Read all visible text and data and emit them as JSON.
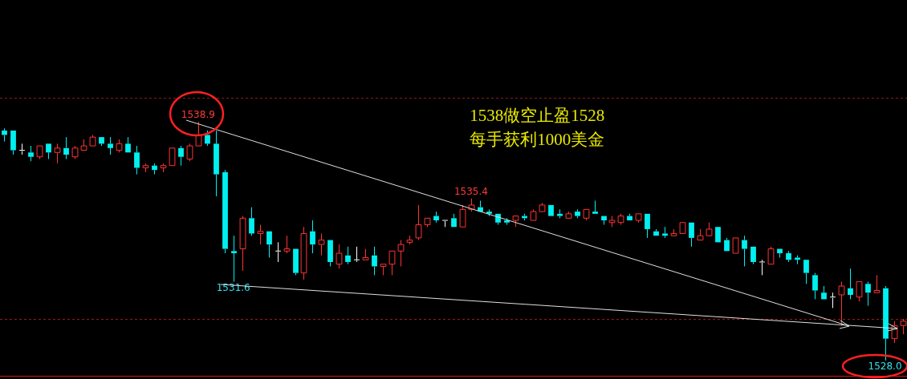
{
  "chart_data": {
    "type": "candlestick",
    "categories": [
      null,
      null,
      null,
      null,
      null,
      null,
      null,
      null,
      null,
      null,
      null,
      null,
      null,
      null,
      null,
      null,
      null,
      null,
      null,
      null,
      null,
      null,
      null,
      null,
      null,
      null,
      null,
      null,
      null,
      null,
      null,
      null,
      null,
      null,
      null,
      null,
      null,
      null,
      null,
      null,
      null,
      null,
      null,
      null,
      null,
      null,
      null,
      null,
      null,
      null,
      null,
      null,
      null,
      null,
      null,
      null,
      null,
      null,
      null,
      null,
      null,
      null,
      null,
      null,
      null,
      null,
      null,
      null,
      null,
      null,
      null,
      null,
      null,
      null,
      null,
      null,
      null,
      null,
      null,
      null,
      null,
      null,
      null,
      null,
      null,
      null,
      null,
      null,
      null,
      null,
      null,
      null,
      null,
      null,
      null,
      null,
      null,
      null,
      null,
      null,
      null,
      null,
      null
    ],
    "ohlc": [
      [
        1538.5,
        1538.6,
        1538.0,
        1538.3
      ],
      [
        1538.5,
        1538.5,
        1537.4,
        1537.6
      ],
      [
        1537.6,
        1537.9,
        1537.4,
        1537.6
      ],
      [
        1537.5,
        1537.8,
        1537.1,
        1537.3
      ],
      [
        1537.3,
        1537.8,
        1537.2,
        1537.8
      ],
      [
        1537.9,
        1537.9,
        1537.2,
        1537.5
      ],
      [
        1537.5,
        1537.9,
        1537.0,
        1537.7
      ],
      [
        1537.7,
        1538.2,
        1537.2,
        1537.4
      ],
      [
        1537.3,
        1537.8,
        1537.2,
        1537.7
      ],
      [
        1537.6,
        1538.1,
        1537.6,
        1537.8
      ],
      [
        1537.8,
        1538.3,
        1537.8,
        1538.2
      ],
      [
        1538.2,
        1538.2,
        1537.8,
        1537.9
      ],
      [
        1537.9,
        1538.2,
        1537.4,
        1537.7
      ],
      [
        1537.6,
        1538.1,
        1537.5,
        1537.9
      ],
      [
        1537.9,
        1538.2,
        1537.5,
        1537.5
      ],
      [
        1537.5,
        1537.8,
        1536.5,
        1536.8
      ],
      [
        1536.8,
        1537.0,
        1536.6,
        1536.9
      ],
      [
        1536.9,
        1537.0,
        1536.5,
        1536.7
      ],
      [
        1536.8,
        1537.0,
        1536.6,
        1536.9
      ],
      [
        1536.9,
        1537.7,
        1536.9,
        1537.7
      ],
      [
        1537.7,
        1537.8,
        1536.9,
        1537.3
      ],
      [
        1537.2,
        1537.9,
        1537.1,
        1537.8
      ],
      [
        1537.8,
        1538.9,
        1537.8,
        1538.3
      ],
      [
        1538.3,
        1538.5,
        1537.8,
        1537.9
      ],
      [
        1537.9,
        1538.5,
        1535.5,
        1536.5
      ],
      [
        1536.6,
        1536.7,
        1532.9,
        1533.1
      ],
      [
        1533.0,
        1533.7,
        1531.6,
        1532.9
      ],
      [
        1533.1,
        1534.6,
        1532.1,
        1534.5
      ],
      [
        1534.5,
        1535.0,
        1533.7,
        1533.8
      ],
      [
        1533.8,
        1534.2,
        1533.3,
        1533.9
      ],
      [
        1533.9,
        1533.9,
        1532.7,
        1533.3
      ],
      [
        1533.0,
        1533.4,
        1532.5,
        1533.0
      ],
      [
        1533.0,
        1533.7,
        1532.9,
        1533.1
      ],
      [
        1533.1,
        1533.1,
        1531.9,
        1532.0
      ],
      [
        1532.0,
        1534.1,
        1531.7,
        1533.8
      ],
      [
        1533.9,
        1534.4,
        1532.9,
        1533.3
      ],
      [
        1533.3,
        1533.8,
        1532.8,
        1533.5
      ],
      [
        1533.5,
        1533.5,
        1532.3,
        1532.5
      ],
      [
        1532.4,
        1533.3,
        1532.2,
        1532.9
      ],
      [
        1532.8,
        1533.2,
        1532.4,
        1532.5
      ],
      [
        1532.6,
        1533.2,
        1532.5,
        1532.6
      ],
      [
        1532.6,
        1533.1,
        1532.6,
        1532.7
      ],
      [
        1532.8,
        1533.2,
        1531.9,
        1532.3
      ],
      [
        1532.3,
        1532.4,
        1531.9,
        1532.4
      ],
      [
        1532.4,
        1533.0,
        1531.9,
        1533.0
      ],
      [
        1533.0,
        1533.5,
        1532.3,
        1533.3
      ],
      [
        1533.4,
        1533.7,
        1533.3,
        1533.5
      ],
      [
        1533.6,
        1535.1,
        1533.5,
        1534.2
      ],
      [
        1534.2,
        1534.5,
        1534.1,
        1534.5
      ],
      [
        1534.6,
        1534.8,
        1534.3,
        1534.4
      ],
      [
        1534.4,
        1534.4,
        1534.1,
        1534.4
      ],
      [
        1534.5,
        1534.7,
        1534.1,
        1534.1
      ],
      [
        1534.1,
        1535.1,
        1534.1,
        1534.9
      ],
      [
        1534.9,
        1535.4,
        1534.8,
        1535.1
      ],
      [
        1535.0,
        1535.3,
        1534.8,
        1534.8
      ],
      [
        1534.8,
        1534.9,
        1534.6,
        1534.7
      ],
      [
        1534.7,
        1534.7,
        1534.2,
        1534.3
      ],
      [
        1534.4,
        1534.5,
        1534.2,
        1534.3
      ],
      [
        1534.4,
        1534.6,
        1534.1,
        1534.6
      ],
      [
        1534.6,
        1534.7,
        1534.4,
        1534.5
      ],
      [
        1534.4,
        1534.9,
        1534.4,
        1534.8
      ],
      [
        1534.8,
        1535.2,
        1534.8,
        1535.1
      ],
      [
        1535.1,
        1535.1,
        1534.6,
        1534.6
      ],
      [
        1534.7,
        1534.9,
        1534.5,
        1534.6
      ],
      [
        1534.5,
        1534.8,
        1534.5,
        1534.7
      ],
      [
        1534.8,
        1534.9,
        1534.5,
        1534.6
      ],
      [
        1534.5,
        1534.9,
        1534.4,
        1534.9
      ],
      [
        1534.8,
        1535.3,
        1534.7,
        1534.7
      ],
      [
        1534.6,
        1534.6,
        1534.2,
        1534.4
      ],
      [
        1534.3,
        1534.6,
        1534.1,
        1534.4
      ],
      [
        1534.3,
        1534.7,
        1534.2,
        1534.6
      ],
      [
        1534.6,
        1534.7,
        1534.4,
        1534.4
      ],
      [
        1534.4,
        1534.7,
        1534.3,
        1534.7
      ],
      [
        1534.7,
        1534.7,
        1533.6,
        1534.0
      ],
      [
        1533.9,
        1534.0,
        1533.7,
        1533.7
      ],
      [
        1533.8,
        1534.1,
        1533.6,
        1533.7
      ],
      [
        1533.7,
        1534.0,
        1533.7,
        1533.8
      ],
      [
        1533.8,
        1534.3,
        1533.8,
        1534.3
      ],
      [
        1534.3,
        1534.3,
        1533.2,
        1533.6
      ],
      [
        1533.5,
        1534.0,
        1533.5,
        1533.7
      ],
      [
        1533.7,
        1534.3,
        1533.7,
        1534.0
      ],
      [
        1534.1,
        1534.1,
        1533.4,
        1533.4
      ],
      [
        1533.5,
        1533.6,
        1533.0,
        1533.0
      ],
      [
        1532.9,
        1533.6,
        1532.9,
        1533.6
      ],
      [
        1533.5,
        1533.7,
        1532.3,
        1533.1
      ],
      [
        1533.2,
        1533.2,
        1532.4,
        1532.5
      ],
      [
        1532.5,
        1532.6,
        1531.9,
        1532.5
      ],
      [
        1532.4,
        1533.2,
        1532.4,
        1533.1
      ],
      [
        1533.1,
        1533.1,
        1532.7,
        1532.9
      ],
      [
        1532.9,
        1533.0,
        1532.5,
        1532.6
      ],
      [
        1532.7,
        1532.8,
        1532.4,
        1532.6
      ],
      [
        1532.6,
        1532.6,
        1531.5,
        1532.0
      ],
      [
        1531.9,
        1532.0,
        1530.8,
        1531.2
      ],
      [
        1531.1,
        1531.4,
        1530.8,
        1530.8
      ],
      [
        1530.9,
        1531.1,
        1530.4,
        1530.9
      ],
      [
        1531.0,
        1531.6,
        1529.6,
        1531.4
      ],
      [
        1531.3,
        1532.2,
        1530.8,
        1531.0
      ],
      [
        1530.9,
        1531.6,
        1530.7,
        1531.6
      ],
      [
        1531.5,
        1531.6,
        1530.5,
        1531.1
      ],
      [
        1531.1,
        1531.9,
        1531.1,
        1531.2
      ],
      [
        1531.3,
        1531.4,
        1528.0,
        1529.0
      ],
      [
        1529.0,
        1529.8,
        1528.8,
        1529.6
      ],
      [
        1529.6,
        1529.9,
        1529.2,
        1529.8
      ]
    ],
    "colors": [
      "#00f0f0",
      "#00f0f0",
      "#ffffff",
      "#00f0f0",
      "#ff3333",
      "#00f0f0",
      "#ff3333",
      "#00f0f0",
      "#ff3333",
      "#ff3333",
      "#ff3333",
      "#00f0f0",
      "#00f0f0",
      "#ff3333",
      "#00f0f0",
      "#00f0f0",
      "#ff3333",
      "#00f0f0",
      "#ff3333",
      "#ff3333",
      "#00f0f0",
      "#ff3333",
      "#ff3333",
      "#00f0f0",
      "#00f0f0",
      "#00f0f0",
      "#00f0f0",
      "#ff3333",
      "#00f0f0",
      "#ff3333",
      "#00f0f0",
      "#ffffff",
      "#ff3333",
      "#00f0f0",
      "#ff3333",
      "#00f0f0",
      "#ff3333",
      "#00f0f0",
      "#ff3333",
      "#00f0f0",
      "#ffffff",
      "#ff3333",
      "#00f0f0",
      "#ff3333",
      "#ff3333",
      "#ff3333",
      "#ff3333",
      "#ff3333",
      "#ff3333",
      "#00f0f0",
      "#ffffff",
      "#00f0f0",
      "#ff3333",
      "#ff3333",
      "#00f0f0",
      "#00f0f0",
      "#00f0f0",
      "#00f0f0",
      "#ff3333",
      "#00f0f0",
      "#ff3333",
      "#ff3333",
      "#00f0f0",
      "#00f0f0",
      "#ff3333",
      "#00f0f0",
      "#ff3333",
      "#00f0f0",
      "#00f0f0",
      "#ff3333",
      "#ff3333",
      "#00f0f0",
      "#ff3333",
      "#00f0f0",
      "#00f0f0",
      "#00f0f0",
      "#ff3333",
      "#ff3333",
      "#00f0f0",
      "#ff3333",
      "#ff3333",
      "#00f0f0",
      "#00f0f0",
      "#ff3333",
      "#00f0f0",
      "#00f0f0",
      "#ffffff",
      "#ff3333",
      "#00f0f0",
      "#00f0f0",
      "#00f0f0",
      "#00f0f0",
      "#00f0f0",
      "#00f0f0",
      "#ffffff",
      "#ff3333",
      "#00f0f0",
      "#ff3333",
      "#00f0f0",
      "#ff3333",
      "#00f0f0",
      "#ff3333",
      "#ff3333"
    ],
    "tick_labels": false,
    "ref_lines": [
      {
        "axis": "y",
        "value": 1540.0,
        "color": "#8b1a1a",
        "line_style": "dashed"
      },
      {
        "axis": "y",
        "value": 1529.9,
        "color": "#a01818",
        "line_style": "dashed"
      },
      {
        "axis": "y",
        "value": 1527.3,
        "color": "#e01010",
        "line_style": "solid"
      }
    ],
    "annotations": [
      "1538做空止盈1528",
      "每手获利1000美金",
      {
        "text": "1538.9",
        "y": 1538.9
      },
      {
        "text": "1535.4",
        "y": 1535.4
      },
      {
        "text": "1531.6",
        "y": 1531.6
      },
      {
        "text": "1528.0",
        "y": 1528.0
      }
    ]
  }
}
